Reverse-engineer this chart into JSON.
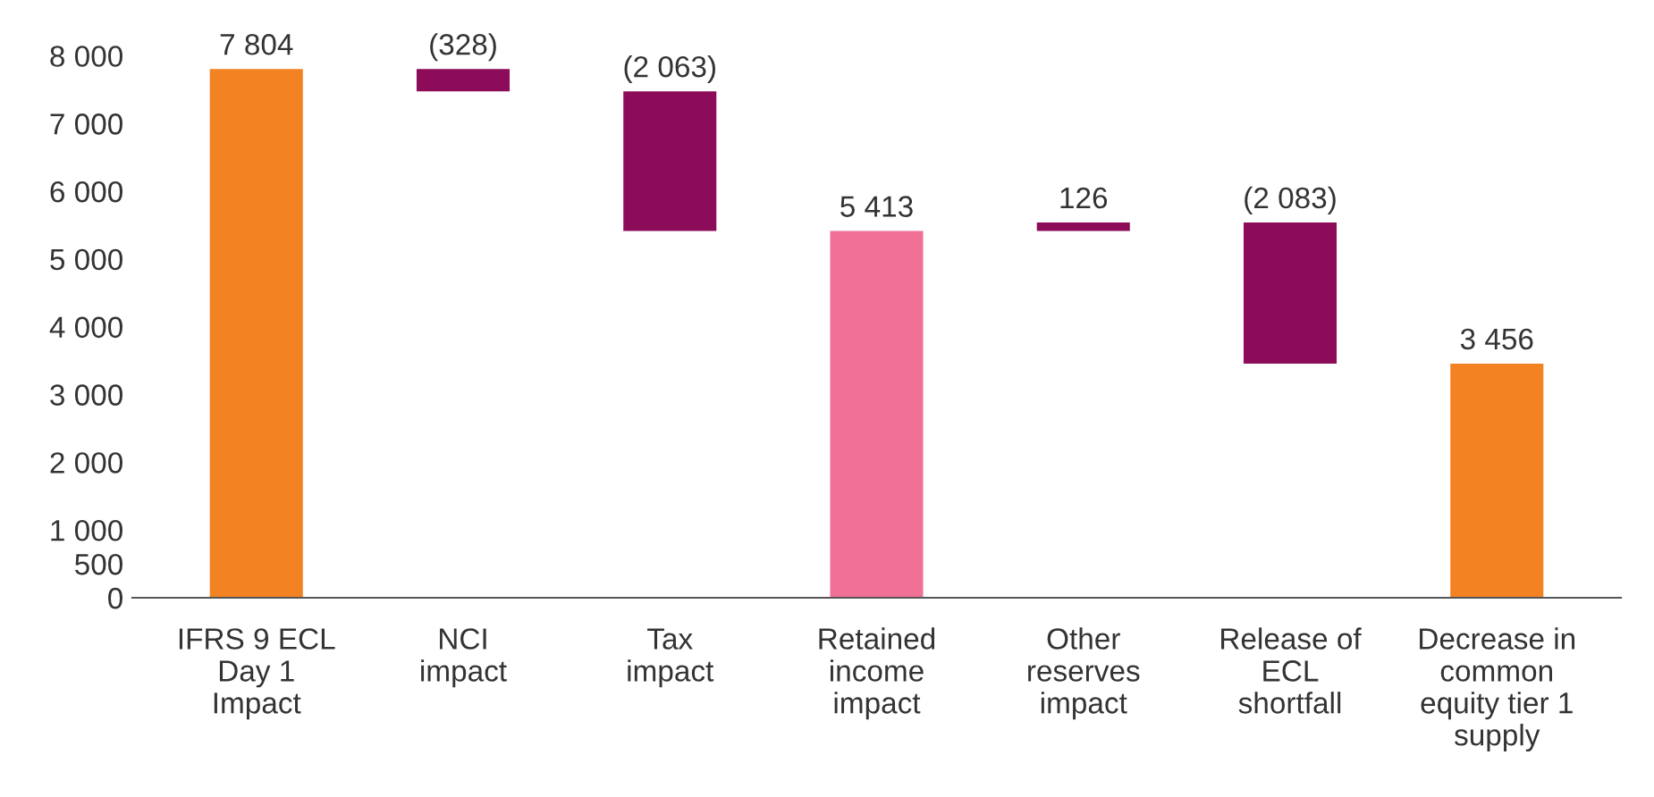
{
  "chart_data": {
    "type": "bar",
    "categories": [
      "IFRS 9 ECL\nDay 1\nImpact",
      "NCI\nimpact",
      "Tax\nimpact",
      "Retained\nincome\nimpact",
      "Other\nreserves\nimpact",
      "Release of\nECL\nshortfall",
      "Decrease in\ncommon\nequity tier 1\nsupply"
    ],
    "values": [
      7804,
      -328,
      -2063,
      5413,
      126,
      -2083,
      3456
    ],
    "base": [
      0,
      7804,
      7476,
      0,
      5413,
      5539,
      0
    ],
    "colors": [
      "#f28222",
      "#8c0c5a",
      "#8c0c5a",
      "#f07096",
      "#8c0c5a",
      "#8c0c5a",
      "#f28222"
    ],
    "value_labels": [
      "7 804",
      "(328)",
      "(2 063)",
      "5 413",
      "126",
      "(2 083)",
      "3 456"
    ],
    "ylim": [
      0,
      8000
    ],
    "yticks": [
      0,
      500,
      {
        "value": 1000,
        "label": "1 000"
      },
      {
        "value": 2000,
        "label": "2 000"
      },
      {
        "value": 3000,
        "label": "3 000"
      },
      {
        "value": 4000,
        "label": "4 000"
      },
      {
        "value": 5000,
        "label": "5 000"
      },
      {
        "value": 6000,
        "label": "6 000"
      },
      {
        "value": 7000,
        "label": "7 000"
      },
      {
        "value": 8000,
        "label": "8 000"
      }
    ],
    "grid": false
  }
}
